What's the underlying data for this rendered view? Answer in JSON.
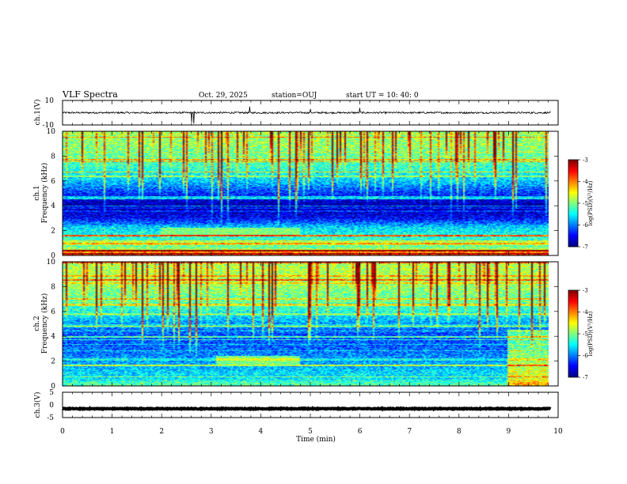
{
  "header": {
    "title": "VLF Spectra",
    "date": "Oct. 29, 2025",
    "station": "station=OUJ",
    "start": "start  UT =   10: 40: 0"
  },
  "chart_data": {
    "type": "heatmap",
    "title": "VLF Spectra",
    "xlabel": "Time  (min)",
    "xlim": [
      0,
      10
    ],
    "x_ticks": [
      "0",
      "1",
      "2",
      "3",
      "4",
      "5",
      "6",
      "7",
      "8",
      "9",
      "10"
    ],
    "data_end_min": 9.85,
    "panels": [
      {
        "name": "ch1-waveform",
        "type": "line",
        "ylabel": "ch.1(V)",
        "ylim": [
          -10,
          10
        ],
        "y_ticks": [
          "10",
          "-10"
        ],
        "baseline": 0,
        "noise_amplitude": 0.7,
        "spikes": [
          {
            "t": 2.6,
            "v": -8
          },
          {
            "t": 2.65,
            "v": -9
          },
          {
            "t": 3.78,
            "v": 5
          },
          {
            "t": 5.0,
            "v": 3
          },
          {
            "t": 6.0,
            "v": 4
          }
        ]
      },
      {
        "name": "ch1-spectrogram",
        "type": "heatmap",
        "ylabel": "ch.1\nFrequency (kHz)",
        "ylabel_line1": "ch.1",
        "ylabel_line2": "Frequency  (kHz)",
        "ylim": [
          0,
          10
        ],
        "y_ticks": [
          "0",
          "2",
          "4",
          "6",
          "8",
          "10"
        ],
        "colorbar": {
          "label": "log(PSD)(V²/Hz)",
          "min": -7,
          "max": -3,
          "ticks": [
            "-3",
            "-4",
            "-5",
            "-6",
            "-7"
          ]
        },
        "band_levels": [
          {
            "f": 0.25,
            "v": -4.0
          },
          {
            "f": 0.6,
            "v": -5.0
          },
          {
            "f": 1.0,
            "v": -5.2
          },
          {
            "f": 1.6,
            "v": -5.4
          },
          {
            "f": 2.2,
            "v": -5.6
          },
          {
            "f": 3.0,
            "v": -6.5
          },
          {
            "f": 4.0,
            "v": -6.9
          },
          {
            "f": 5.0,
            "v": -6.3
          },
          {
            "f": 6.0,
            "v": -5.7
          },
          {
            "f": 7.0,
            "v": -5.3
          },
          {
            "f": 8.0,
            "v": -5.1
          },
          {
            "f": 9.0,
            "v": -4.9
          },
          {
            "f": 10.0,
            "v": -4.9
          }
        ],
        "enhanced_band": {
          "f_low": 1.6,
          "f_high": 2.2,
          "t_start": 2.0,
          "t_end": 4.8,
          "v": -5.0
        },
        "sferic_density": 0.22
      },
      {
        "name": "ch2-spectrogram",
        "type": "heatmap",
        "ylabel": "ch.2\nFrequency (kHz)",
        "ylabel_line1": "ch.2",
        "ylabel_line2": "Frequency  (kHz)",
        "ylim": [
          0,
          10
        ],
        "y_ticks": [
          "0",
          "2",
          "4",
          "6",
          "8",
          "10"
        ],
        "colorbar": {
          "label": "log(PSD)(V²/Hz)",
          "min": -7,
          "max": -3,
          "ticks": [
            "-3",
            "-4",
            "-5",
            "-6",
            "-7"
          ]
        },
        "band_levels": [
          {
            "f": 0.25,
            "v": -5.2
          },
          {
            "f": 0.6,
            "v": -5.6
          },
          {
            "f": 1.0,
            "v": -5.6
          },
          {
            "f": 1.6,
            "v": -5.8
          },
          {
            "f": 2.2,
            "v": -5.9
          },
          {
            "f": 3.0,
            "v": -6.1
          },
          {
            "f": 4.0,
            "v": -6.2
          },
          {
            "f": 5.0,
            "v": -5.9
          },
          {
            "f": 6.0,
            "v": -5.4
          },
          {
            "f": 7.0,
            "v": -5.1
          },
          {
            "f": 8.0,
            "v": -4.9
          },
          {
            "f": 9.0,
            "v": -4.8
          },
          {
            "f": 10.0,
            "v": -4.8
          }
        ],
        "enhanced_band": {
          "f_low": 1.7,
          "f_high": 2.4,
          "t_start": 3.1,
          "t_end": 4.8,
          "v": -5.0
        },
        "sferic_density": 0.24
      },
      {
        "name": "ch3-waveform",
        "type": "line",
        "ylabel": "ch.3(V)",
        "ylim": [
          -5,
          5
        ],
        "y_ticks": [
          "5",
          "0",
          "-5"
        ],
        "baseline": -1.5,
        "noise_amplitude": 0.15
      }
    ]
  }
}
